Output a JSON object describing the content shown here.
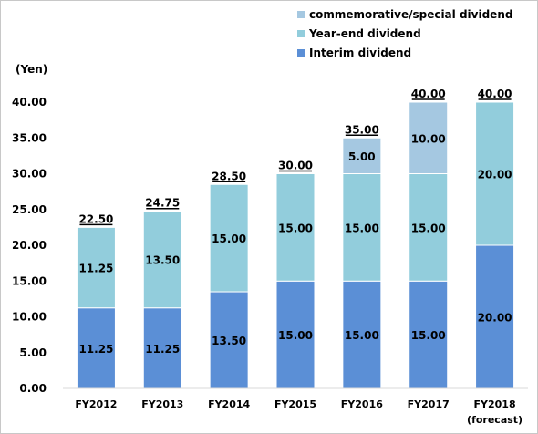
{
  "chart_data": {
    "type": "bar",
    "stacked": true,
    "title": "",
    "xlabel": "",
    "ylabel": "(Yen)",
    "ylim": [
      0,
      40
    ],
    "y_ticks": [
      "0.00",
      "5.00",
      "10.00",
      "15.00",
      "20.00",
      "25.00",
      "30.00",
      "35.00",
      "40.00"
    ],
    "grid": false,
    "legend_position": "top-right",
    "categories": [
      "FY2012",
      "FY2013",
      "FY2014",
      "FY2015",
      "FY2016",
      "FY2017",
      "FY2018"
    ],
    "category_notes": [
      "",
      "",
      "",
      "",
      "",
      "",
      "(forecast)"
    ],
    "series": [
      {
        "name": "Interim dividend",
        "color": "#5b8fd6",
        "values": [
          11.25,
          11.25,
          13.5,
          15,
          15,
          15,
          20
        ],
        "labels": [
          "11.25",
          "11.25",
          "13.50",
          "15.00",
          "15.00",
          "15.00",
          "20.00"
        ]
      },
      {
        "name": "Year-end dividend",
        "color": "#92cddc",
        "values": [
          11.25,
          13.5,
          15,
          15,
          15,
          15,
          20
        ],
        "labels": [
          "11.25",
          "13.50",
          "15.00",
          "15.00",
          "15.00",
          "15.00",
          "20.00"
        ]
      },
      {
        "name": "commemorative/special dividend",
        "color": "#a5c8e1",
        "values": [
          0,
          0,
          0,
          0,
          5,
          10,
          0
        ],
        "labels": [
          "",
          "",
          "",
          "",
          "5.00",
          "10.00",
          ""
        ]
      }
    ],
    "totals": [
      "22.50",
      "24.75",
      "28.50",
      "30.00",
      "35.00",
      "40.00",
      "40.00"
    ],
    "legend_order": [
      2,
      1,
      0
    ]
  }
}
